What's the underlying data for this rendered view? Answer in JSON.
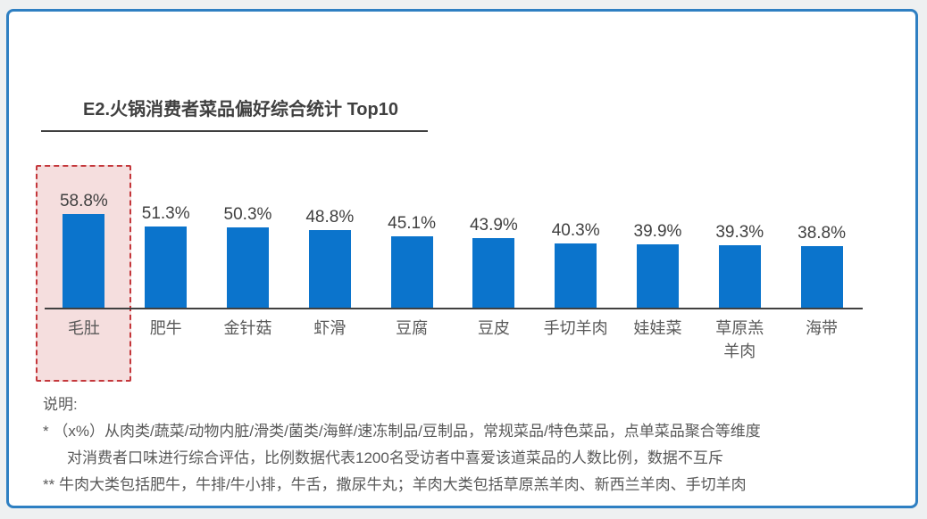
{
  "card": {
    "title": "E2.火锅消费者菜品偏好综合统计 Top10"
  },
  "colors": {
    "bar": "#0B74CC",
    "card_border": "#2E7FC2",
    "highlight_background": "#F5DEDE",
    "highlight_border": "#C4373B",
    "axis_line": "#404040",
    "title_text": "#404040",
    "note_text": "#595959"
  },
  "chart_data": {
    "type": "bar",
    "title": "E2.火锅消费者菜品偏好综合统计 Top10",
    "categories": [
      "毛肚",
      "肥牛",
      "金针菇",
      "虾滑",
      "豆腐",
      "豆皮",
      "手切羊肉",
      "娃娃菜",
      "草原羔\n羊肉",
      "海带"
    ],
    "values": [
      58.8,
      51.3,
      50.3,
      48.8,
      45.1,
      43.9,
      40.3,
      39.9,
      39.3,
      38.8
    ],
    "value_labels": [
      "58.8%",
      "51.3%",
      "50.3%",
      "48.8%",
      "45.1%",
      "43.9%",
      "40.3%",
      "39.9%",
      "39.3%",
      "38.8%"
    ],
    "unit": "%",
    "highlighted_category": "毛肚",
    "highlighted_index": 0,
    "xlabel": "",
    "ylabel": "",
    "ylim": [
      0,
      65
    ],
    "grid": false,
    "legend": null,
    "bar_color": "#0B74CC"
  },
  "notes": {
    "heading": "说明:",
    "lines": [
      "* （x%）从肉类/蔬菜/动物内脏/滑类/菌类/海鲜/速冻制品/豆制品，常规菜品/特色菜品，点单菜品聚合等维度",
      "对消费者口味进行综合评估，比例数据代表1200名受访者中喜爱该道菜品的人数比例，数据不互斥",
      "** 牛肉大类包括肥牛，牛排/牛小排，牛舌，撒尿牛丸；羊肉大类包括草原羔羊肉、新西兰羊肉、手切羊肉"
    ]
  }
}
